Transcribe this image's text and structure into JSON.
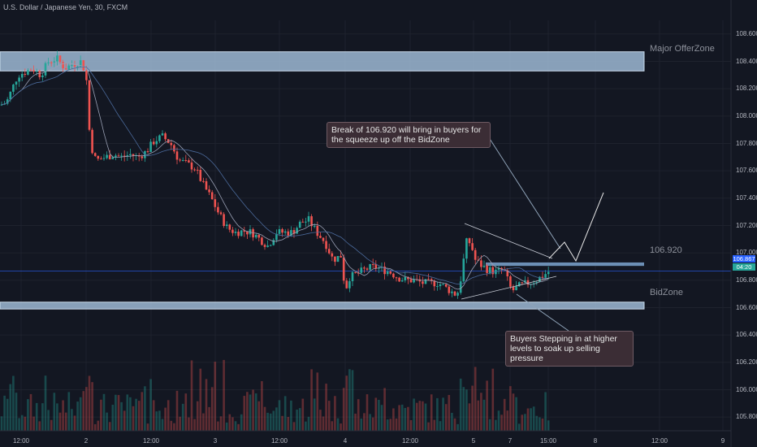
{
  "header": {
    "title": "U.S. Dollar / Japanese Yen, 30, FXCM"
  },
  "zones": {
    "offer_label": "Major OfferZone",
    "bid_label": "BidZone",
    "level_label": "106.920"
  },
  "price_tags": {
    "last": "106.867",
    "countdown": "04:20"
  },
  "annotations": {
    "top": "Break of 106.920 will bring in buyers for the squeeze up off the BidZone",
    "bottom": "Buyers Stepping in at higher levels to soak up selling pressure"
  },
  "colors": {
    "background": "#131722",
    "up": "#26a69a",
    "down": "#ef5350",
    "zone": "#9db8d4",
    "grid": "#1e222d",
    "callout": "#3b2d35"
  },
  "chart_data": {
    "type": "candlestick",
    "symbol": "USDJPY",
    "timeframe": "30",
    "ylim": [
      105.7,
      108.7
    ],
    "y_ticks": [
      "108.600",
      "108.400",
      "108.200",
      "108.000",
      "107.800",
      "107.600",
      "107.400",
      "107.200",
      "107.000",
      "106.800",
      "106.600",
      "106.400",
      "106.200",
      "106.000",
      "105.800"
    ],
    "x_ticks": [
      "12:00",
      "2",
      "12:00",
      "3",
      "12:00",
      "4",
      "12:00",
      "5",
      "7",
      "15:00",
      "8",
      "12:00",
      "9"
    ],
    "path": [
      [
        0,
        108.08
      ],
      [
        8,
        108.1
      ],
      [
        15,
        108.2
      ],
      [
        22,
        108.3
      ],
      [
        30,
        108.32
      ],
      [
        40,
        108.35
      ],
      [
        50,
        108.3
      ],
      [
        60,
        108.4
      ],
      [
        70,
        108.42
      ],
      [
        80,
        108.35
      ],
      [
        90,
        108.38
      ],
      [
        100,
        108.4
      ],
      [
        106,
        108.3
      ],
      [
        110,
        107.9
      ],
      [
        115,
        107.7
      ],
      [
        120,
        107.68
      ],
      [
        130,
        107.7
      ],
      [
        140,
        107.72
      ],
      [
        150,
        107.7
      ],
      [
        160,
        107.72
      ],
      [
        170,
        107.7
      ],
      [
        180,
        107.74
      ],
      [
        190,
        107.82
      ],
      [
        200,
        107.85
      ],
      [
        210,
        107.8
      ],
      [
        220,
        107.68
      ],
      [
        230,
        107.65
      ],
      [
        240,
        107.62
      ],
      [
        250,
        107.5
      ],
      [
        260,
        107.4
      ],
      [
        270,
        107.28
      ],
      [
        280,
        107.18
      ],
      [
        290,
        107.15
      ],
      [
        300,
        107.16
      ],
      [
        310,
        107.15
      ],
      [
        320,
        107.1
      ],
      [
        330,
        107.05
      ],
      [
        340,
        107.15
      ],
      [
        350,
        107.15
      ],
      [
        360,
        107.15
      ],
      [
        370,
        107.22
      ],
      [
        380,
        107.24
      ],
      [
        390,
        107.15
      ],
      [
        400,
        107.08
      ],
      [
        410,
        106.95
      ],
      [
        420,
        106.98
      ],
      [
        425,
        106.72
      ],
      [
        430,
        106.82
      ],
      [
        440,
        106.85
      ],
      [
        450,
        106.88
      ],
      [
        460,
        106.9
      ],
      [
        470,
        106.88
      ],
      [
        480,
        106.86
      ],
      [
        490,
        106.82
      ],
      [
        500,
        106.8
      ],
      [
        510,
        106.8
      ],
      [
        520,
        106.78
      ],
      [
        530,
        106.78
      ],
      [
        540,
        106.78
      ],
      [
        550,
        106.74
      ],
      [
        560,
        106.7
      ],
      [
        565,
        106.72
      ],
      [
        570,
        106.92
      ],
      [
        575,
        107.1
      ],
      [
        580,
        107.06
      ],
      [
        585,
        106.95
      ],
      [
        590,
        106.92
      ],
      [
        600,
        106.88
      ],
      [
        610,
        106.86
      ],
      [
        620,
        106.88
      ],
      [
        630,
        106.72
      ],
      [
        640,
        106.76
      ],
      [
        650,
        106.78
      ],
      [
        660,
        106.8
      ],
      [
        670,
        106.84
      ],
      [
        677,
        106.87
      ]
    ]
  }
}
